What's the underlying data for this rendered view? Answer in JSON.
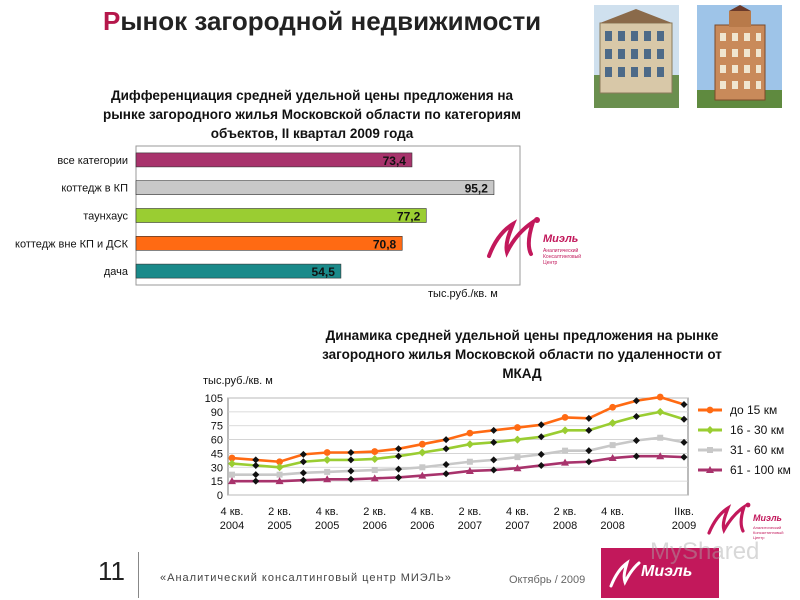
{
  "page": {
    "title": "Рынок загородной недвижимости",
    "page_number": "11",
    "footer_left": "«Аналитический консалтинговый центр МИЭЛЬ»",
    "footer_date": "Октябрь / 2009",
    "brand": "Миэль",
    "logo_sub": [
      "Аналитический",
      "Консалтинговый",
      "Центр"
    ],
    "watermark": "MyShared"
  },
  "chart_data": [
    {
      "type": "bar",
      "orientation": "horizontal",
      "title": "Дифференциация средней удельной цены предложения на рынке загородного жилья Московской области по категориям объектов, II квартал 2009 года",
      "title_lines": [
        "Дифференциация средней удельной цены предложения на",
        "рынке загородного жилья Московской области по категориям",
        "объектов, II квартал 2009 года"
      ],
      "unit": "тыс.руб./кв.  м",
      "categories": [
        "все категории",
        "коттедж в КП",
        "таунхаус",
        "коттедж вне КП и ДСК",
        "дача"
      ],
      "values": [
        73.4,
        95.2,
        77.2,
        70.8,
        54.5
      ],
      "value_labels": [
        "73,4",
        "95,2",
        "77,2",
        "70,8",
        "54,5"
      ],
      "colors": [
        "#a8336c",
        "#c8c8c8",
        "#9acd32",
        "#ff6a13",
        "#1a8a8a"
      ],
      "xlim": [
        0,
        100
      ]
    },
    {
      "type": "line",
      "title": "Динамика средней удельной цены предложения на рынке загородного жилья Московской области по удаленности от МКАД",
      "title_lines": [
        "Динамика средней удельной цены предложения на рынке",
        "загородного жилья Московской области по удаленности от",
        "МКАД"
      ],
      "ylabel": "тыс.руб./кв.  м",
      "ylim": [
        0,
        105
      ],
      "yticks": [
        "105",
        "90",
        "75",
        "60",
        "45",
        "30",
        "15",
        "0"
      ],
      "xtick_labels": [
        {
          "q": "4 кв.",
          "y": "2004"
        },
        {
          "q": "2 кв.",
          "y": "2005"
        },
        {
          "q": "4 кв.",
          "y": "2005"
        },
        {
          "q": "2 кв.",
          "y": "2006"
        },
        {
          "q": "4 кв.",
          "y": "2006"
        },
        {
          "q": "2 кв.",
          "y": "2007"
        },
        {
          "q": "4 кв.",
          "y": "2007"
        },
        {
          "q": "2 кв.",
          "y": "2008"
        },
        {
          "q": "4 кв.",
          "y": "2008"
        },
        {
          "q": "IIкв.",
          "y": "2009"
        }
      ],
      "grid": true,
      "legend_position": "right",
      "series": [
        {
          "name": "до 15 км",
          "color": "#ff6a13",
          "marker": "circle",
          "values": [
            40,
            38,
            36,
            44,
            46,
            46,
            47,
            50,
            55,
            60,
            67,
            70,
            73,
            76,
            84,
            83,
            95,
            102,
            106,
            98
          ]
        },
        {
          "name": "16 - 30 км",
          "color": "#9acd32",
          "marker": "diamond",
          "values": [
            34,
            32,
            30,
            36,
            38,
            38,
            39,
            42,
            46,
            50,
            55,
            57,
            60,
            63,
            70,
            70,
            78,
            85,
            90,
            82
          ]
        },
        {
          "name": "31 - 60 км",
          "color": "#c8c8c8",
          "marker": "square",
          "values": [
            22,
            22,
            22,
            24,
            25,
            26,
            27,
            28,
            30,
            33,
            36,
            38,
            41,
            44,
            48,
            48,
            54,
            59,
            62,
            57
          ]
        },
        {
          "name": "61 - 100 км",
          "color": "#a8336c",
          "marker": "triangle",
          "values": [
            15,
            15,
            15,
            16,
            17,
            17,
            18,
            19,
            21,
            23,
            26,
            27,
            29,
            32,
            35,
            36,
            40,
            42,
            42,
            41
          ]
        }
      ]
    }
  ]
}
